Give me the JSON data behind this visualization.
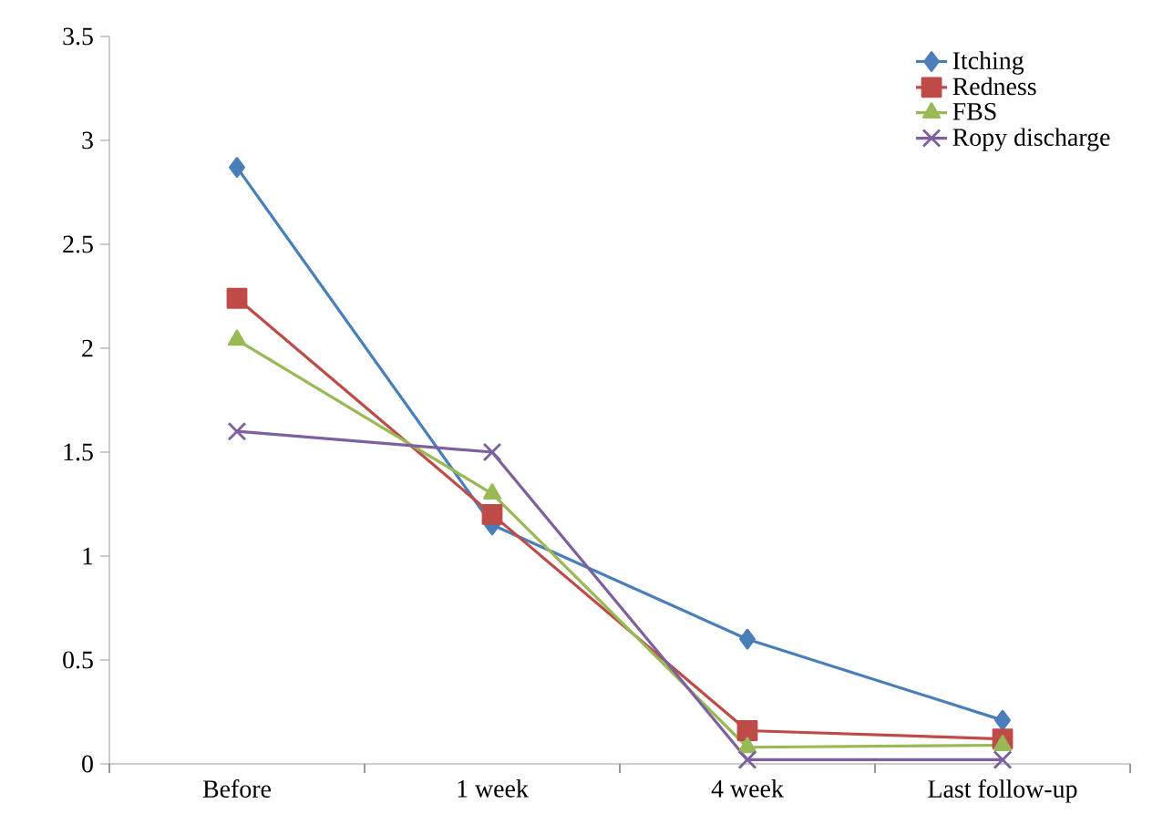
{
  "chart_data": {
    "type": "line",
    "categories": [
      "Before",
      "1 week",
      "4 week",
      "Last follow-up"
    ],
    "series": [
      {
        "name": "Itching",
        "color": "#4a7ebb",
        "marker": "diamond",
        "values": [
          2.87,
          1.15,
          0.6,
          0.21
        ]
      },
      {
        "name": "Redness",
        "color": "#be4b48",
        "marker": "square",
        "values": [
          2.24,
          1.2,
          0.16,
          0.12
        ]
      },
      {
        "name": "FBS",
        "color": "#98b954",
        "marker": "triangle",
        "values": [
          2.04,
          1.3,
          0.08,
          0.09
        ]
      },
      {
        "name": "Ropy discharge",
        "color": "#7d60a0",
        "marker": "cross",
        "values": [
          1.6,
          1.5,
          0.02,
          0.02
        ]
      }
    ],
    "ylim": [
      0,
      3.5
    ],
    "yticks": [
      0,
      0.5,
      1,
      1.5,
      2,
      2.5,
      3,
      3.5
    ],
    "grid": false,
    "legend": "top right",
    "line_style": "solid"
  }
}
